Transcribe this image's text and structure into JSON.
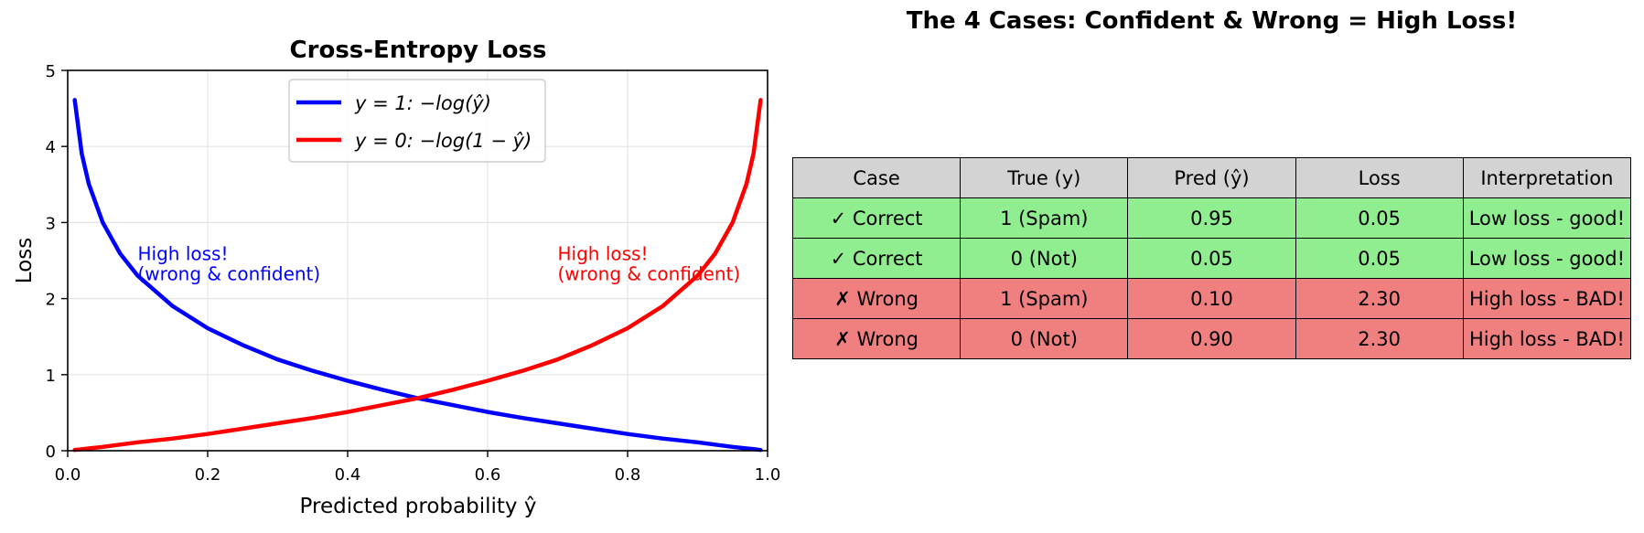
{
  "chart_data": [
    {
      "type": "line",
      "title": "Cross-Entropy Loss",
      "xlabel": "Predicted probability ŷ",
      "ylabel": "Loss",
      "xlim": [
        0.0,
        1.0
      ],
      "ylim": [
        0,
        5
      ],
      "xticks": [
        "0.0",
        "0.2",
        "0.4",
        "0.6",
        "0.8",
        "1.0"
      ],
      "yticks": [
        "0",
        "1",
        "2",
        "3",
        "4",
        "5"
      ],
      "grid": true,
      "legend_position": "top-center",
      "x": [
        0.01,
        0.02,
        0.03,
        0.05,
        0.075,
        0.1,
        0.15,
        0.2,
        0.25,
        0.3,
        0.35,
        0.4,
        0.45,
        0.5,
        0.55,
        0.6,
        0.65,
        0.7,
        0.75,
        0.8,
        0.85,
        0.9,
        0.925,
        0.95,
        0.97,
        0.98,
        0.99
      ],
      "series": [
        {
          "name": "y = 1: −log(ŷ)",
          "color": "#0000ff",
          "values": [
            4.61,
            3.91,
            3.51,
            3.0,
            2.59,
            2.3,
            1.9,
            1.61,
            1.39,
            1.2,
            1.05,
            0.92,
            0.8,
            0.69,
            0.6,
            0.51,
            0.43,
            0.36,
            0.29,
            0.22,
            0.16,
            0.11,
            0.08,
            0.05,
            0.03,
            0.02,
            0.01
          ]
        },
        {
          "name": "y = 0: −log(1 − ŷ)",
          "color": "#ff0000",
          "values": [
            0.01,
            0.02,
            0.03,
            0.05,
            0.08,
            0.11,
            0.16,
            0.22,
            0.29,
            0.36,
            0.43,
            0.51,
            0.6,
            0.69,
            0.8,
            0.92,
            1.05,
            1.2,
            1.39,
            1.61,
            1.9,
            2.3,
            2.59,
            3.0,
            3.51,
            3.91,
            4.61
          ]
        }
      ],
      "annotations": [
        {
          "lines": [
            "High loss!",
            "(wrong & confident)"
          ],
          "x": 0.1,
          "y": 2.6,
          "color": "#0000ff"
        },
        {
          "lines": [
            "High loss!",
            "(wrong & confident)"
          ],
          "x": 0.7,
          "y": 2.6,
          "color": "#ff0000"
        }
      ]
    },
    {
      "type": "table",
      "title": "The 4 Cases: Confident & Wrong = High Loss!",
      "columns": [
        "Case",
        "True (y)",
        "Pred (ŷ)",
        "Loss",
        "Interpretation"
      ],
      "rows": [
        {
          "status": "ok",
          "cells": [
            "✓ Correct",
            "1 (Spam)",
            "0.95",
            "0.05",
            "Low loss - good!"
          ]
        },
        {
          "status": "ok",
          "cells": [
            "✓ Correct",
            "0 (Not)",
            "0.05",
            "0.05",
            "Low loss - good!"
          ]
        },
        {
          "status": "bad",
          "cells": [
            "✗ Wrong",
            "1 (Spam)",
            "0.10",
            "2.30",
            "High loss - BAD!"
          ]
        },
        {
          "status": "bad",
          "cells": [
            "✗ Wrong",
            "0 (Not)",
            "0.90",
            "2.30",
            "High loss - BAD!"
          ]
        }
      ],
      "colors": {
        "header": "#d3d3d3",
        "ok": "#90ee90",
        "bad": "#f08080"
      }
    }
  ]
}
